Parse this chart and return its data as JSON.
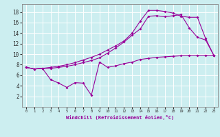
{
  "xlabel": "Windchill (Refroidissement éolien,°C)",
  "bg_color": "#cceef0",
  "line_color": "#990099",
  "grid_color": "#ffffff",
  "xlim": [
    -0.5,
    23.5
  ],
  "ylim": [
    0,
    19.5
  ],
  "xticks": [
    0,
    1,
    2,
    3,
    4,
    5,
    6,
    7,
    8,
    9,
    10,
    11,
    12,
    13,
    14,
    15,
    16,
    17,
    18,
    19,
    20,
    21,
    22,
    23
  ],
  "yticks": [
    2,
    4,
    6,
    8,
    10,
    12,
    14,
    16,
    18
  ],
  "line1_x": [
    0,
    1,
    2,
    3,
    4,
    5,
    6,
    7,
    8,
    9,
    10,
    11,
    12,
    13,
    14,
    15,
    16,
    17,
    18,
    19,
    20,
    21,
    22,
    23
  ],
  "line1_y": [
    7.5,
    7.2,
    7.3,
    7.3,
    7.5,
    7.7,
    8.0,
    8.4,
    8.8,
    9.3,
    10.2,
    11.2,
    12.3,
    13.6,
    14.8,
    17.2,
    17.3,
    17.1,
    17.3,
    17.5,
    15.0,
    13.2,
    12.7,
    9.8
  ],
  "line2_x": [
    0,
    1,
    2,
    3,
    4,
    5,
    6,
    7,
    8,
    9,
    10,
    11,
    12,
    13,
    14,
    15,
    16,
    17,
    18,
    19,
    20,
    21,
    22,
    23
  ],
  "line2_y": [
    7.5,
    7.2,
    7.3,
    7.5,
    7.7,
    8.0,
    8.4,
    8.9,
    9.4,
    10.0,
    10.8,
    11.6,
    12.5,
    14.0,
    16.3,
    18.3,
    18.3,
    18.1,
    17.8,
    17.2,
    17.0,
    17.0,
    13.0,
    9.8
  ],
  "line3_x": [
    0,
    1,
    2,
    3,
    4,
    5,
    6,
    7,
    8,
    9,
    10,
    11,
    12,
    13,
    14,
    15,
    16,
    17,
    18,
    19,
    20,
    21,
    22,
    23
  ],
  "line3_y": [
    7.5,
    7.2,
    7.3,
    5.2,
    4.5,
    3.7,
    4.6,
    4.5,
    2.2,
    8.5,
    7.5,
    7.8,
    8.2,
    8.5,
    9.0,
    9.2,
    9.4,
    9.5,
    9.6,
    9.7,
    9.8,
    9.8,
    9.8,
    9.8
  ]
}
